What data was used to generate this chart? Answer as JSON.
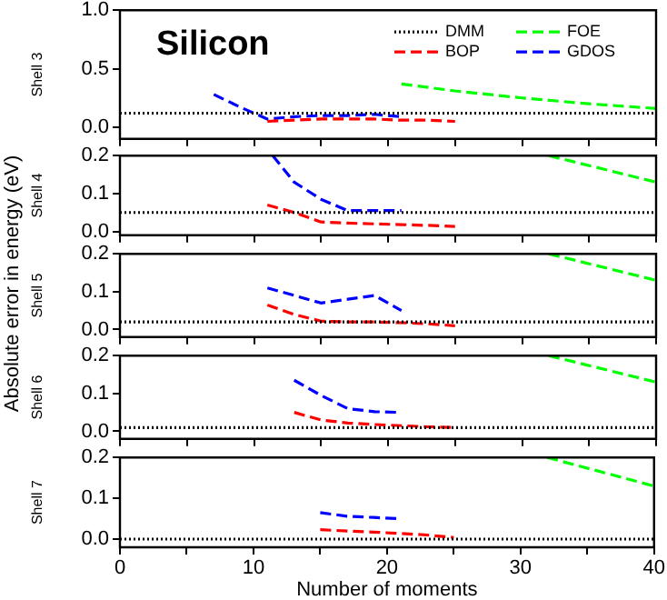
{
  "chart_data": [
    {
      "type": "line",
      "title": "Silicon",
      "ylabel": "Shell 3",
      "annotations": [
        "Absolute error in energy (eV)"
      ],
      "legend": "top right",
      "grid": false,
      "marker": "none",
      "tick_labels": "y",
      "xlim": [
        0,
        40
      ],
      "xticks": [
        {
          "value": 0,
          "label": null
        },
        {
          "value": 5,
          "label": null
        },
        {
          "value": 10,
          "label": null
        },
        {
          "value": 15,
          "label": null
        },
        {
          "value": 20,
          "label": null
        },
        {
          "value": 25,
          "label": null
        },
        {
          "value": 30,
          "label": null
        },
        {
          "value": 35,
          "label": null
        },
        {
          "value": 40,
          "label": null
        }
      ],
      "ylim": [
        -0.1,
        1.0
      ],
      "yticks": [
        {
          "value": 0,
          "label": "0.0"
        },
        {
          "value": 0.5,
          "label": "0.5"
        },
        {
          "value": 1,
          "label": "1.0"
        }
      ],
      "series": [
        {
          "name": "DMM",
          "color": "#000000",
          "line_style": "dotted",
          "x": [
            0,
            40
          ],
          "values": [
            0.12,
            0.12
          ]
        },
        {
          "name": "BOP",
          "color": "#ff0000",
          "line_style": "dashed",
          "x": [
            11,
            13,
            15,
            17,
            19,
            21,
            23,
            25
          ],
          "values": [
            0.05,
            0.06,
            0.07,
            0.07,
            0.07,
            0.06,
            0.06,
            0.05
          ]
        },
        {
          "name": "FOE",
          "color": "#00ff00",
          "line_style": "dashed",
          "x": [
            21,
            25,
            30,
            35,
            40
          ],
          "values": [
            0.37,
            0.31,
            0.25,
            0.2,
            0.16
          ]
        },
        {
          "name": "GDOS",
          "color": "#0000ff",
          "line_style": "dashed",
          "x": [
            7,
            9,
            11,
            13,
            15,
            17,
            19,
            21
          ],
          "values": [
            0.28,
            0.17,
            0.07,
            0.09,
            0.1,
            0.1,
            0.11,
            0.09
          ]
        }
      ]
    },
    {
      "type": "line",
      "ylabel": "Shell 4",
      "grid": false,
      "marker": "none",
      "tick_labels": "y",
      "xlim": [
        0,
        40
      ],
      "xticks": [
        {
          "value": 0,
          "label": null
        },
        {
          "value": 5,
          "label": null
        },
        {
          "value": 10,
          "label": null
        },
        {
          "value": 15,
          "label": null
        },
        {
          "value": 20,
          "label": null
        },
        {
          "value": 25,
          "label": null
        },
        {
          "value": 30,
          "label": null
        },
        {
          "value": 35,
          "label": null
        },
        {
          "value": 40,
          "label": null
        }
      ],
      "ylim": [
        -0.01,
        0.2
      ],
      "yticks": [
        {
          "value": 0,
          "label": "0.0"
        },
        {
          "value": 0.1,
          "label": "0.1"
        },
        {
          "value": 0.2,
          "label": "0.2"
        }
      ],
      "series": [
        {
          "color": "#000000",
          "line_style": "dotted",
          "x": [
            0,
            40
          ],
          "values": [
            0.05,
            0.05
          ]
        },
        {
          "color": "#ff0000",
          "line_style": "dashed",
          "x": [
            11,
            13,
            15,
            17,
            19,
            21,
            23,
            25
          ],
          "values": [
            0.07,
            0.05,
            0.025,
            0.022,
            0.02,
            0.018,
            0.016,
            0.013
          ]
        },
        {
          "color": "#00ff00",
          "line_style": "dashed",
          "x": [
            32,
            40
          ],
          "values": [
            0.2,
            0.13
          ]
        },
        {
          "color": "#0000ff",
          "line_style": "dashed",
          "x": [
            11.4,
            13,
            15,
            17,
            19,
            21
          ],
          "values": [
            0.2,
            0.13,
            0.085,
            0.055,
            0.055,
            0.055
          ]
        }
      ]
    },
    {
      "type": "line",
      "ylabel": "Shell 5",
      "grid": false,
      "marker": "none",
      "tick_labels": "y",
      "xlim": [
        0,
        40
      ],
      "xticks": [
        {
          "value": 0,
          "label": null
        },
        {
          "value": 5,
          "label": null
        },
        {
          "value": 10,
          "label": null
        },
        {
          "value": 15,
          "label": null
        },
        {
          "value": 20,
          "label": null
        },
        {
          "value": 25,
          "label": null
        },
        {
          "value": 30,
          "label": null
        },
        {
          "value": 35,
          "label": null
        },
        {
          "value": 40,
          "label": null
        }
      ],
      "ylim": [
        -0.02,
        0.2
      ],
      "yticks": [
        {
          "value": 0,
          "label": "0.0"
        },
        {
          "value": 0.1,
          "label": "0.1"
        },
        {
          "value": 0.2,
          "label": "0.2"
        }
      ],
      "series": [
        {
          "color": "#000000",
          "line_style": "dotted",
          "x": [
            0,
            40
          ],
          "values": [
            0.02,
            0.02
          ]
        },
        {
          "color": "#ff0000",
          "line_style": "dashed",
          "x": [
            11,
            13,
            15,
            17,
            19,
            21,
            23,
            25
          ],
          "values": [
            0.065,
            0.04,
            0.022,
            0.02,
            0.02,
            0.018,
            0.015,
            0.01
          ]
        },
        {
          "color": "#00ff00",
          "line_style": "dashed",
          "x": [
            32,
            40
          ],
          "values": [
            0.2,
            0.13
          ]
        },
        {
          "color": "#0000ff",
          "line_style": "dashed",
          "x": [
            11,
            13,
            15,
            17,
            19,
            21
          ],
          "values": [
            0.11,
            0.09,
            0.07,
            0.08,
            0.09,
            0.05
          ]
        }
      ]
    },
    {
      "type": "line",
      "ylabel": "Shell 6",
      "grid": false,
      "marker": "none",
      "tick_labels": "y",
      "xlim": [
        0,
        40
      ],
      "xticks": [
        {
          "value": 0,
          "label": null
        },
        {
          "value": 5,
          "label": null
        },
        {
          "value": 10,
          "label": null
        },
        {
          "value": 15,
          "label": null
        },
        {
          "value": 20,
          "label": null
        },
        {
          "value": 25,
          "label": null
        },
        {
          "value": 30,
          "label": null
        },
        {
          "value": 35,
          "label": null
        },
        {
          "value": 40,
          "label": null
        }
      ],
      "ylim": [
        -0.02,
        0.2
      ],
      "yticks": [
        {
          "value": 0,
          "label": "0.0"
        },
        {
          "value": 0.1,
          "label": "0.1"
        },
        {
          "value": 0.2,
          "label": "0.2"
        }
      ],
      "series": [
        {
          "color": "#000000",
          "line_style": "dotted",
          "x": [
            0,
            40
          ],
          "values": [
            0.01,
            0.01
          ]
        },
        {
          "color": "#ff0000",
          "line_style": "dashed",
          "x": [
            13,
            15,
            17,
            19,
            21,
            23,
            25
          ],
          "values": [
            0.05,
            0.03,
            0.022,
            0.018,
            0.015,
            0.012,
            0.01
          ]
        },
        {
          "color": "#00ff00",
          "line_style": "dashed",
          "x": [
            32,
            40
          ],
          "values": [
            0.2,
            0.13
          ]
        },
        {
          "color": "#0000ff",
          "line_style": "dashed",
          "x": [
            13,
            15,
            17,
            19,
            21
          ],
          "values": [
            0.135,
            0.095,
            0.06,
            0.052,
            0.05
          ]
        }
      ]
    },
    {
      "type": "line",
      "ylabel": "Shell 7",
      "xlabel": "Number of moments",
      "grid": false,
      "marker": "none",
      "xlim": [
        0,
        40
      ],
      "xticks": [
        {
          "value": 0,
          "label": "0"
        },
        {
          "value": 5,
          "label": null
        },
        {
          "value": 10,
          "label": "10"
        },
        {
          "value": 15,
          "label": null
        },
        {
          "value": 20,
          "label": "20"
        },
        {
          "value": 25,
          "label": null
        },
        {
          "value": 30,
          "label": "30"
        },
        {
          "value": 35,
          "label": null
        },
        {
          "value": 40,
          "label": "40"
        }
      ],
      "ylim": [
        -0.02,
        0.2
      ],
      "yticks": [
        {
          "value": 0,
          "label": "0.0"
        },
        {
          "value": 0.1,
          "label": "0.1"
        },
        {
          "value": 0.2,
          "label": "0.2"
        }
      ],
      "series": [
        {
          "color": "#000000",
          "line_style": "dotted",
          "x": [
            0,
            40
          ],
          "values": [
            0,
            0
          ]
        },
        {
          "color": "#ff0000",
          "line_style": "dashed",
          "x": [
            15,
            17,
            19,
            21,
            23,
            25
          ],
          "values": [
            0.023,
            0.02,
            0.017,
            0.014,
            0.01,
            0.004
          ]
        },
        {
          "color": "#00ff00",
          "line_style": "dashed",
          "x": [
            32,
            40
          ],
          "values": [
            0.2,
            0.13
          ]
        },
        {
          "color": "#0000ff",
          "line_style": "dashed",
          "x": [
            15,
            17,
            19,
            21
          ],
          "values": [
            0.065,
            0.056,
            0.053,
            0.05
          ]
        }
      ]
    }
  ]
}
